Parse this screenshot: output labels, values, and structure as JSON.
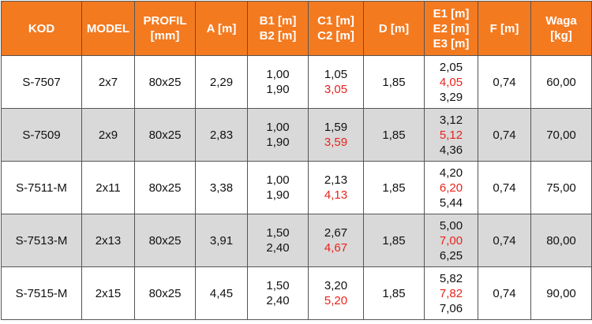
{
  "table": {
    "header": [
      [
        "KOD"
      ],
      [
        "MODEL"
      ],
      [
        "PROFIL",
        "[mm]"
      ],
      [
        "A [m]"
      ],
      [
        "B1 [m]",
        "B2 [m]"
      ],
      [
        "C1 [m]",
        "C2 [m]"
      ],
      [
        "D [m]"
      ],
      [
        "E1 [m]",
        "E2 [m]",
        "E3 [m]"
      ],
      [
        "F [m]"
      ],
      [
        "Waga",
        "[kg]"
      ]
    ],
    "rows": [
      [
        [
          "S-7507"
        ],
        [
          "2x7"
        ],
        [
          "80x25"
        ],
        [
          "2,29"
        ],
        [
          "1,00",
          "1,90"
        ],
        [
          "1,05",
          "3,05"
        ],
        [
          "1,85"
        ],
        [
          "2,05",
          "4,05",
          "3,29"
        ],
        [
          "0,74"
        ],
        [
          "60,00"
        ]
      ],
      [
        [
          "S-7509"
        ],
        [
          "2x9"
        ],
        [
          "80x25"
        ],
        [
          "2,83"
        ],
        [
          "1,00",
          "1,90"
        ],
        [
          "1,59",
          "3,59"
        ],
        [
          "1,85"
        ],
        [
          "3,12",
          "5,12",
          "4,36"
        ],
        [
          "0,74"
        ],
        [
          "70,00"
        ]
      ],
      [
        [
          "S-7511-M"
        ],
        [
          "2x11"
        ],
        [
          "80x25"
        ],
        [
          "3,38"
        ],
        [
          "1,00",
          "1,90"
        ],
        [
          "2,13",
          "4,13"
        ],
        [
          "1,85"
        ],
        [
          "4,20",
          "6,20",
          "5,44"
        ],
        [
          "0,74"
        ],
        [
          "75,00"
        ]
      ],
      [
        [
          "S-7513-M"
        ],
        [
          "2x13"
        ],
        [
          "80x25"
        ],
        [
          "3,91"
        ],
        [
          "1,50",
          "2,40"
        ],
        [
          "2,67",
          "4,67"
        ],
        [
          "1,85"
        ],
        [
          "5,00",
          "7,00",
          "6,25"
        ],
        [
          "0,74"
        ],
        [
          "80,00"
        ]
      ],
      [
        [
          "S-7515-M"
        ],
        [
          "2x15"
        ],
        [
          "80x25"
        ],
        [
          "4,45"
        ],
        [
          "1,50",
          "2,40"
        ],
        [
          "3,20",
          "5,20"
        ],
        [
          "1,85"
        ],
        [
          "5,82",
          "7,82",
          "7,06"
        ],
        [
          "0,74"
        ],
        [
          "90,00"
        ]
      ]
    ]
  }
}
